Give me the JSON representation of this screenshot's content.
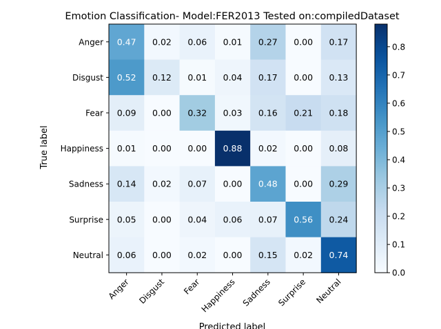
{
  "chart_data": {
    "type": "heatmap",
    "title": "Emotion Classification- Model:FER2013 Tested on:compiledDataset",
    "xlabel": "Predicted label",
    "ylabel": "True label",
    "x_categories": [
      "Anger",
      "Disgust",
      "Fear",
      "Happiness",
      "Sadness",
      "Surprise",
      "Neutral"
    ],
    "y_categories": [
      "Anger",
      "Disgust",
      "Fear",
      "Happiness",
      "Sadness",
      "Surprise",
      "Neutral"
    ],
    "values": [
      [
        0.47,
        0.02,
        0.06,
        0.01,
        0.27,
        0.0,
        0.17
      ],
      [
        0.52,
        0.12,
        0.01,
        0.04,
        0.17,
        0.0,
        0.13
      ],
      [
        0.09,
        0.0,
        0.32,
        0.03,
        0.16,
        0.21,
        0.18
      ],
      [
        0.01,
        0.0,
        0.0,
        0.88,
        0.02,
        0.0,
        0.08
      ],
      [
        0.14,
        0.02,
        0.07,
        0.0,
        0.48,
        0.0,
        0.29
      ],
      [
        0.05,
        0.0,
        0.04,
        0.06,
        0.07,
        0.56,
        0.24
      ],
      [
        0.06,
        0.0,
        0.02,
        0.0,
        0.15,
        0.02,
        0.74
      ]
    ],
    "colormap": "Blues",
    "vmin": 0.0,
    "vmax": 0.88,
    "colorbar_ticks": [
      "0.0",
      "0.1",
      "0.2",
      "0.3",
      "0.4",
      "0.5",
      "0.6",
      "0.7",
      "0.8"
    ],
    "colorbar_tick_values": [
      0.0,
      0.1,
      0.2,
      0.3,
      0.4,
      0.5,
      0.6,
      0.7,
      0.8
    ],
    "grid": false,
    "legend": "colorbar-right"
  }
}
